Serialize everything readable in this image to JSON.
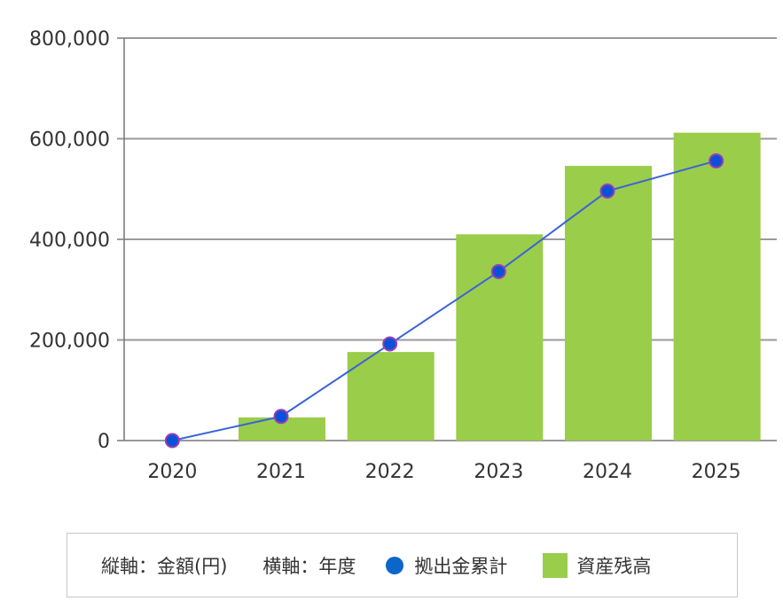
{
  "chart_data": {
    "type": "bar+line",
    "categories": [
      "2020",
      "2021",
      "2022",
      "2023",
      "2024",
      "2025"
    ],
    "series": [
      {
        "name": "資産残高",
        "kind": "bar",
        "color": "#9acd4a",
        "values": [
          0,
          46000,
          176000,
          410000,
          546000,
          612000
        ]
      },
      {
        "name": "拠出金累計",
        "kind": "line",
        "color": "#0b50d9",
        "values": [
          0,
          48000,
          192000,
          336000,
          496000,
          556000
        ]
      }
    ],
    "yticks": [
      "0",
      "200,000",
      "400,000",
      "600,000",
      "800,000"
    ],
    "ylim": [
      0,
      800000
    ],
    "grid": true,
    "legend_placement": "bottom"
  },
  "legend": {
    "axis_y": "縦軸：金額(円)",
    "axis_x": "横軸：年度",
    "line_label": "拠出金累計",
    "bar_label": "資産残高",
    "line_color": "#0b66c8",
    "bar_color": "#9acd4a"
  }
}
